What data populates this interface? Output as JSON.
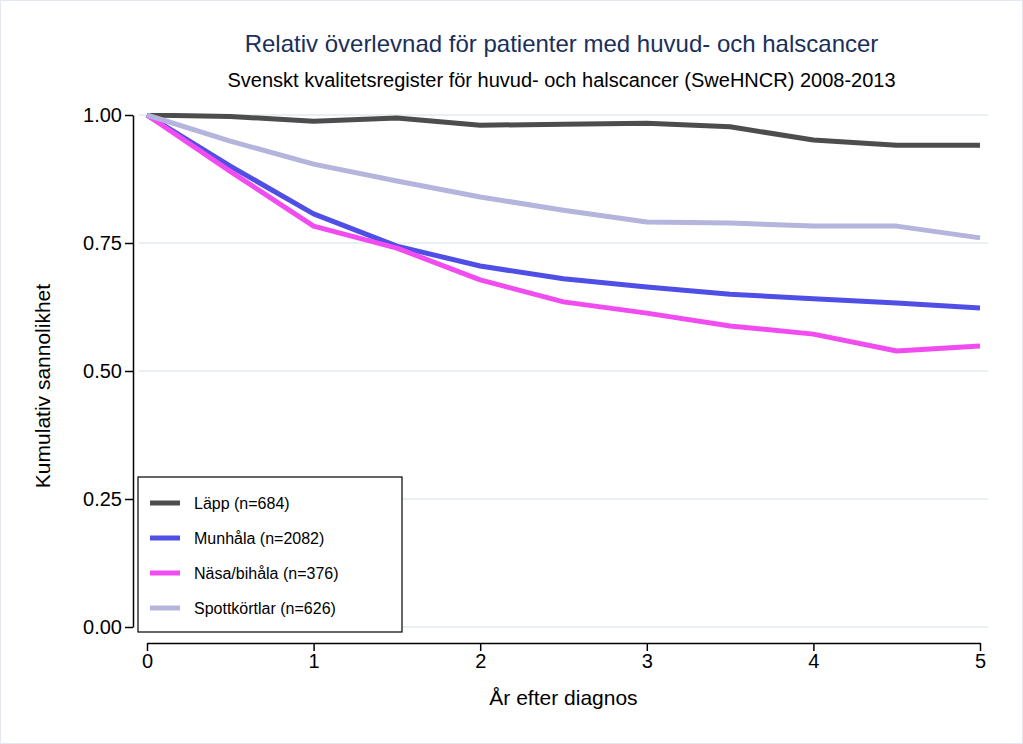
{
  "chart_data": {
    "type": "line",
    "title": "Relativ överlevnad för patienter med huvud- och halscancer",
    "subtitle": "Svenskt kvalitetsregister för huvud- och halscancer (SweHNCR) 2008-2013",
    "x_label": "År efter diagnos",
    "y_label": "Kumulativ sannolikhet",
    "x": [
      0,
      0.5,
      1,
      1.5,
      2,
      2.5,
      3,
      3.5,
      4,
      4.5,
      5
    ],
    "series": [
      {
        "name": "Läpp (n=684)",
        "color": "#4d4d4d",
        "values": [
          1.0,
          0.997,
          0.988,
          0.994,
          0.98,
          0.982,
          0.984,
          0.977,
          0.951,
          0.941,
          0.941
        ]
      },
      {
        "name": "Munhåla (n=2082)",
        "color": "#4f4fe6",
        "values": [
          1.0,
          0.9,
          0.807,
          0.744,
          0.705,
          0.68,
          0.664,
          0.65,
          0.641,
          0.633,
          0.623
        ]
      },
      {
        "name": "Näsa/bihåla (n=376)",
        "color": "#f04cf0",
        "values": [
          1.0,
          0.89,
          0.783,
          0.74,
          0.678,
          0.635,
          0.613,
          0.588,
          0.572,
          0.539,
          0.549
        ]
      },
      {
        "name": "Spottkörtlar (n=626)",
        "color": "#b4b4dc",
        "values": [
          1.0,
          0.949,
          0.904,
          0.871,
          0.84,
          0.814,
          0.791,
          0.789,
          0.783,
          0.783,
          0.76
        ]
      }
    ],
    "xlim": [
      0,
      5
    ],
    "xticks": [
      0,
      1,
      2,
      3,
      4,
      5
    ],
    "ylim": [
      0,
      1
    ],
    "yticks": [
      {
        "value": 0,
        "label": "0.00"
      },
      {
        "value": 0.25,
        "label": "0.25"
      },
      {
        "value": 0.5,
        "label": "0.50"
      },
      {
        "value": 0.75,
        "label": "0.75"
      },
      {
        "value": 1,
        "label": "1.00"
      }
    ],
    "grid": true,
    "legend": "bottom-left"
  }
}
